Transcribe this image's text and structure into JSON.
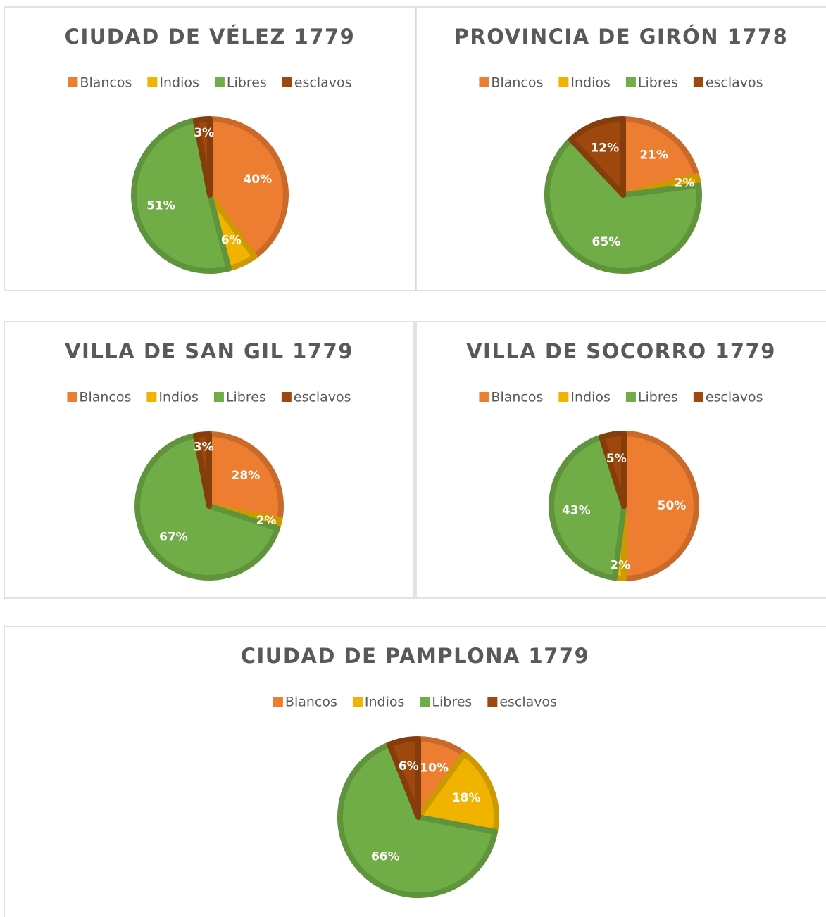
{
  "chart_data": [
    {
      "type": "pie",
      "title": "CIUDAD DE VÉLEZ 1779",
      "categories": [
        "Blancos",
        "Indios",
        "Libres",
        "esclavos"
      ],
      "values": [
        40,
        6,
        51,
        3
      ],
      "value_labels": [
        "40%",
        "6%",
        "51%",
        "3%"
      ],
      "colors": [
        "#ED7D31",
        "#F0B400",
        "#70AD47",
        "#9E480E"
      ]
    },
    {
      "type": "pie",
      "title": "PROVINCIA DE GIRÓN 1778",
      "categories": [
        "Blancos",
        "Indios",
        "Libres",
        "esclavos"
      ],
      "values": [
        21,
        2,
        65,
        12
      ],
      "value_labels": [
        "21%",
        "2%",
        "65%",
        "12%"
      ],
      "colors": [
        "#ED7D31",
        "#F0B400",
        "#70AD47",
        "#9E480E"
      ]
    },
    {
      "type": "pie",
      "title": "VILLA DE SAN GIL 1779",
      "categories": [
        "Blancos",
        "Indios",
        "Libres",
        "esclavos"
      ],
      "values": [
        28,
        2,
        67,
        3
      ],
      "value_labels": [
        "28%",
        "2%",
        "67%",
        "3%"
      ],
      "colors": [
        "#ED7D31",
        "#F0B400",
        "#70AD47",
        "#9E480E"
      ]
    },
    {
      "type": "pie",
      "title": "VILLA DE SOCORRO 1779",
      "categories": [
        "Blancos",
        "Indios",
        "Libres",
        "esclavos"
      ],
      "values": [
        50,
        2,
        43,
        5
      ],
      "value_labels": [
        "50%",
        "2%",
        "43%",
        "5%"
      ],
      "colors": [
        "#ED7D31",
        "#F0B400",
        "#70AD47",
        "#9E480E"
      ]
    },
    {
      "type": "pie",
      "title": "CIUDAD DE PAMPLONA 1779",
      "categories": [
        "Blancos",
        "Indios",
        "Libres",
        "esclavos"
      ],
      "values": [
        10,
        18,
        66,
        6
      ],
      "value_labels": [
        "10%",
        "18%",
        "66%",
        "6%"
      ],
      "colors": [
        "#ED7D31",
        "#F0B400",
        "#70AD47",
        "#9E480E"
      ]
    }
  ]
}
